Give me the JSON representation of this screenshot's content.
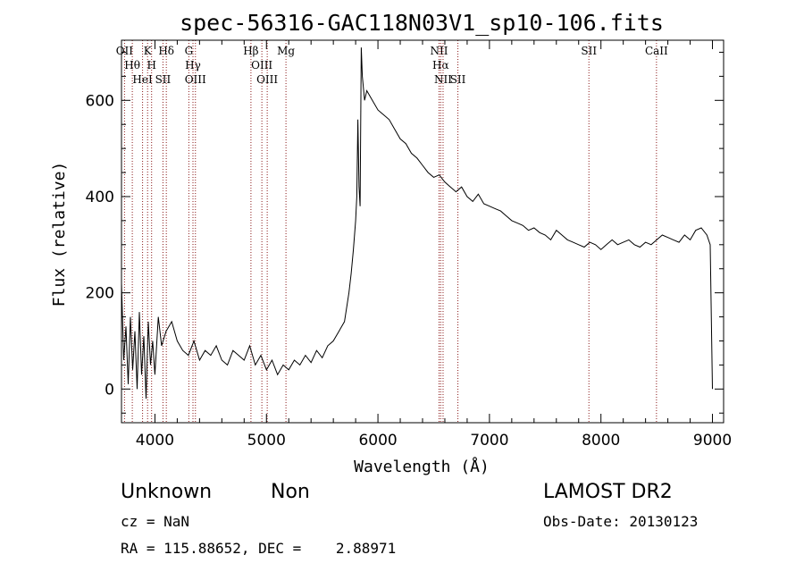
{
  "chart_data": {
    "type": "line",
    "title": "spec-56316-GAC118N03V1_sp10-106.fits",
    "xlabel": "Wavelength (Å)",
    "ylabel": "Flux (relative)",
    "xlim": [
      3700,
      9100
    ],
    "ylim": [
      -70,
      725
    ],
    "xticks": [
      4000,
      5000,
      6000,
      7000,
      8000,
      9000
    ],
    "yticks": [
      0,
      200,
      400,
      600
    ],
    "grid": false,
    "line_color": "#000000",
    "marker_color": "#8b1a1a",
    "series": [
      {
        "x": [
          3700,
          3720,
          3740,
          3760,
          3780,
          3800,
          3820,
          3840,
          3860,
          3880,
          3900,
          3920,
          3940,
          3960,
          3980,
          4000,
          4030,
          4060,
          4100,
          4150,
          4200,
          4250,
          4300,
          4350,
          4400,
          4450,
          4500,
          4550,
          4600,
          4650,
          4700,
          4750,
          4800,
          4850,
          4900,
          4950,
          5000,
          5050,
          5100,
          5150,
          5200,
          5250,
          5300,
          5350,
          5400,
          5450,
          5500,
          5550,
          5600,
          5650,
          5700,
          5720,
          5740,
          5760,
          5780,
          5800,
          5810,
          5820,
          5830,
          5840,
          5850,
          5860,
          5880,
          5900,
          5950,
          6000,
          6050,
          6100,
          6150,
          6200,
          6250,
          6300,
          6350,
          6400,
          6450,
          6500,
          6550,
          6600,
          6650,
          6700,
          6750,
          6800,
          6850,
          6900,
          6950,
          7000,
          7050,
          7100,
          7150,
          7200,
          7250,
          7300,
          7350,
          7400,
          7450,
          7500,
          7550,
          7600,
          7650,
          7700,
          7750,
          7800,
          7850,
          7900,
          7950,
          8000,
          8050,
          8100,
          8150,
          8200,
          8250,
          8300,
          8350,
          8400,
          8450,
          8500,
          8550,
          8600,
          8650,
          8700,
          8750,
          8800,
          8850,
          8900,
          8950,
          8980,
          9000
        ],
        "values": [
          220,
          60,
          130,
          10,
          150,
          40,
          120,
          0,
          160,
          30,
          110,
          -20,
          140,
          50,
          100,
          30,
          150,
          90,
          120,
          140,
          100,
          80,
          70,
          100,
          60,
          80,
          70,
          90,
          60,
          50,
          80,
          70,
          60,
          90,
          50,
          70,
          40,
          60,
          30,
          50,
          40,
          60,
          50,
          70,
          55,
          80,
          65,
          90,
          100,
          120,
          140,
          170,
          200,
          240,
          290,
          350,
          400,
          560,
          420,
          380,
          710,
          650,
          600,
          620,
          600,
          580,
          570,
          560,
          540,
          520,
          510,
          490,
          480,
          465,
          450,
          440,
          445,
          430,
          420,
          410,
          420,
          400,
          390,
          405,
          385,
          380,
          375,
          370,
          360,
          350,
          345,
          340,
          330,
          335,
          325,
          320,
          310,
          330,
          320,
          310,
          305,
          300,
          295,
          305,
          300,
          290,
          300,
          310,
          300,
          305,
          310,
          300,
          295,
          305,
          300,
          310,
          320,
          315,
          310,
          305,
          320,
          310,
          330,
          335,
          320,
          300,
          0
        ]
      }
    ],
    "spectral_lines": [
      {
        "wl": 3727,
        "label": "OII"
      },
      {
        "wl": 3797,
        "label": "Hθ"
      },
      {
        "wl": 3889,
        "label": "HeI"
      },
      {
        "wl": 3934,
        "label": "K"
      },
      {
        "wl": 3970,
        "label": "H"
      },
      {
        "wl": 4072,
        "label": "SII"
      },
      {
        "wl": 4102,
        "label": "Hδ"
      },
      {
        "wl": 4304,
        "label": "G"
      },
      {
        "wl": 4341,
        "label": "Hγ"
      },
      {
        "wl": 4363,
        "label": "OIII"
      },
      {
        "wl": 4861,
        "label": "Hβ"
      },
      {
        "wl": 4959,
        "label": "OIII"
      },
      {
        "wl": 5007,
        "label": "OIII"
      },
      {
        "wl": 5175,
        "label": "Mg"
      },
      {
        "wl": 6548,
        "label": "NII"
      },
      {
        "wl": 6563,
        "label": "Hα"
      },
      {
        "wl": 6584,
        "label": "NII"
      },
      {
        "wl": 6717,
        "label": "SII"
      },
      {
        "wl": 7892,
        "label": "SII"
      },
      {
        "wl": 8498,
        "label": "CaII"
      }
    ]
  },
  "info": {
    "class": "Unknown",
    "subclass": "Non",
    "cz": "cz = NaN",
    "radec": "RA = 115.88652, DEC =    2.88971",
    "survey": "LAMOST DR2",
    "obs_date": "Obs-Date: 20130123"
  }
}
